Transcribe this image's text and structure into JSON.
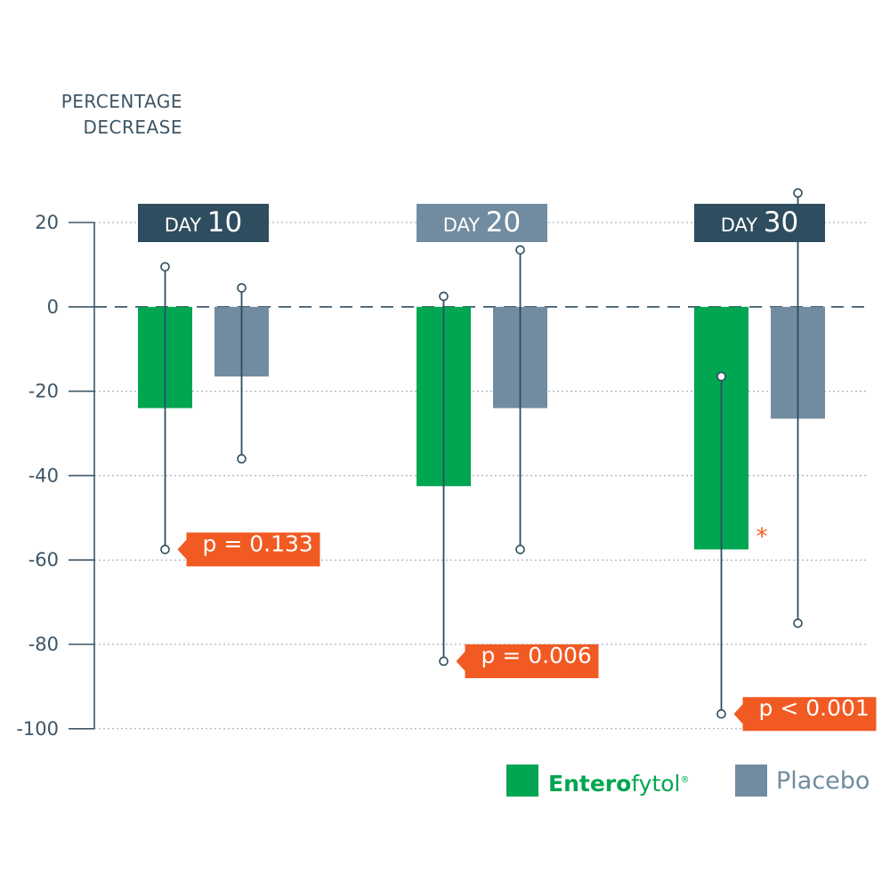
{
  "colors": {
    "enterofytol": "#00a651",
    "placebo": "#718ca0",
    "dark": "#2e4d5f",
    "highlight": "#f15a22",
    "axis": "#3d5566",
    "grid": "#8fa4b3"
  },
  "chart_data": {
    "type": "bar",
    "ylabel_lines": [
      "PERCENTAGE",
      "DECREASE"
    ],
    "ylim": [
      -100,
      20
    ],
    "yticks": [
      20,
      0,
      -20,
      -40,
      -60,
      -80,
      -100
    ],
    "grid": true,
    "zero_line": "dashed",
    "categories": [
      {
        "prefix": "DAY",
        "num": "10",
        "header_style": "dark"
      },
      {
        "prefix": "DAY",
        "num": "20",
        "header_style": "light"
      },
      {
        "prefix": "DAY",
        "num": "30",
        "header_style": "dark"
      }
    ],
    "series": [
      {
        "name": "Enterofytol",
        "name_bold": "Entero",
        "name_rest": "fytol",
        "name_mark": "®",
        "color_key": "enterofytol",
        "values": [
          -24,
          -42.5,
          -57.5
        ],
        "error_upper": [
          9.5,
          2.5,
          -16.5
        ],
        "error_lower": [
          -57.5,
          -84,
          -96.5
        ]
      },
      {
        "name": "Placebo",
        "color_key": "placebo",
        "values": [
          -16.5,
          -24,
          -26.5
        ],
        "error_upper": [
          4.5,
          13.5,
          27
        ],
        "error_lower": [
          -36,
          -57.5,
          -75
        ]
      }
    ],
    "p_values": [
      "p = 0.133",
      "p = 0.006",
      "p < 0.001"
    ],
    "significance_marker": "*",
    "legend_position": "bottom-right"
  }
}
